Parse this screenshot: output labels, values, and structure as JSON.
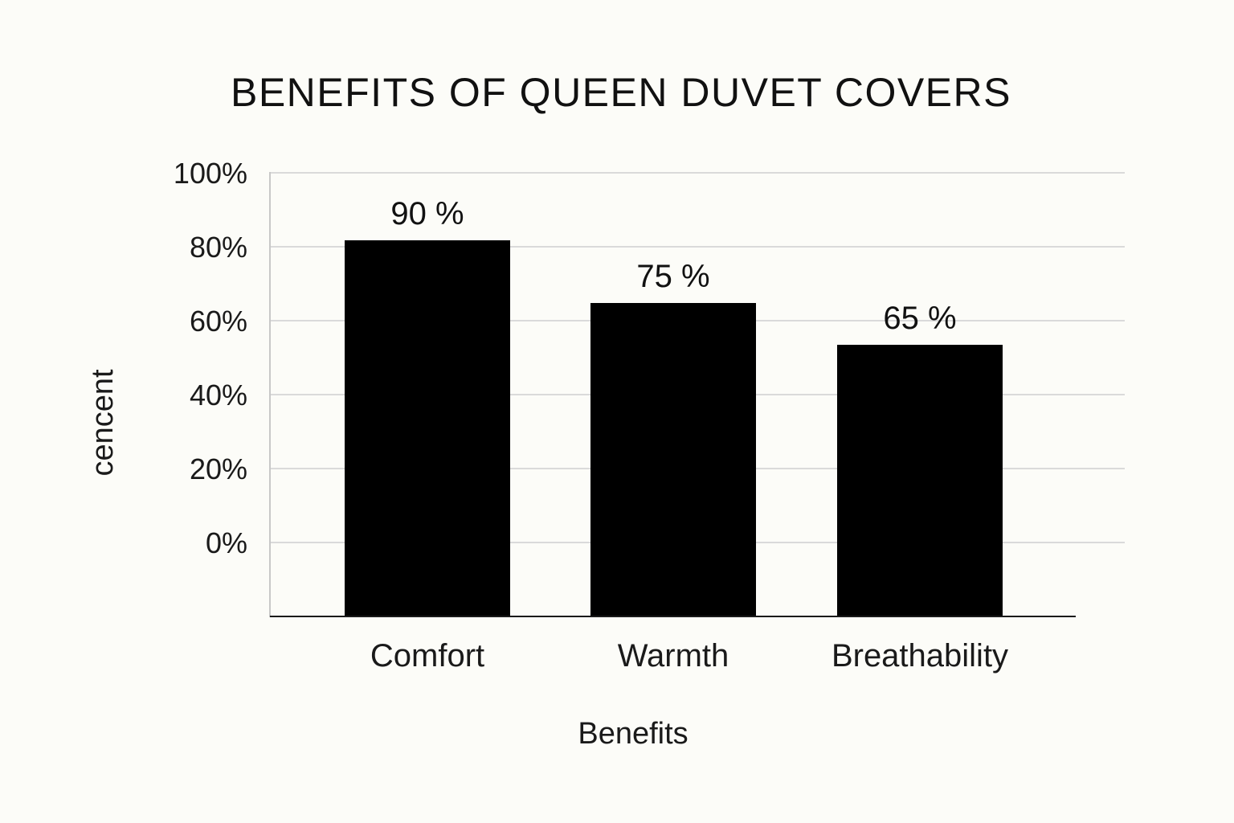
{
  "chart_data": {
    "type": "bar",
    "title": "BENEFITS OF QUEEN DUVET COVERS",
    "xlabel": "Benefits",
    "ylabel": "cencent",
    "categories": [
      "Comfort",
      "Warmth",
      "Breathability"
    ],
    "values": [
      90,
      75,
      65
    ],
    "data_labels": [
      "90 %",
      "75 %",
      "65 %"
    ],
    "yticks": [
      "0%",
      "20%",
      "40%",
      "60%",
      "80%",
      "100%"
    ],
    "ylim": [
      0,
      100
    ],
    "grid": true,
    "legend": "none",
    "bar_color": "#000000"
  }
}
